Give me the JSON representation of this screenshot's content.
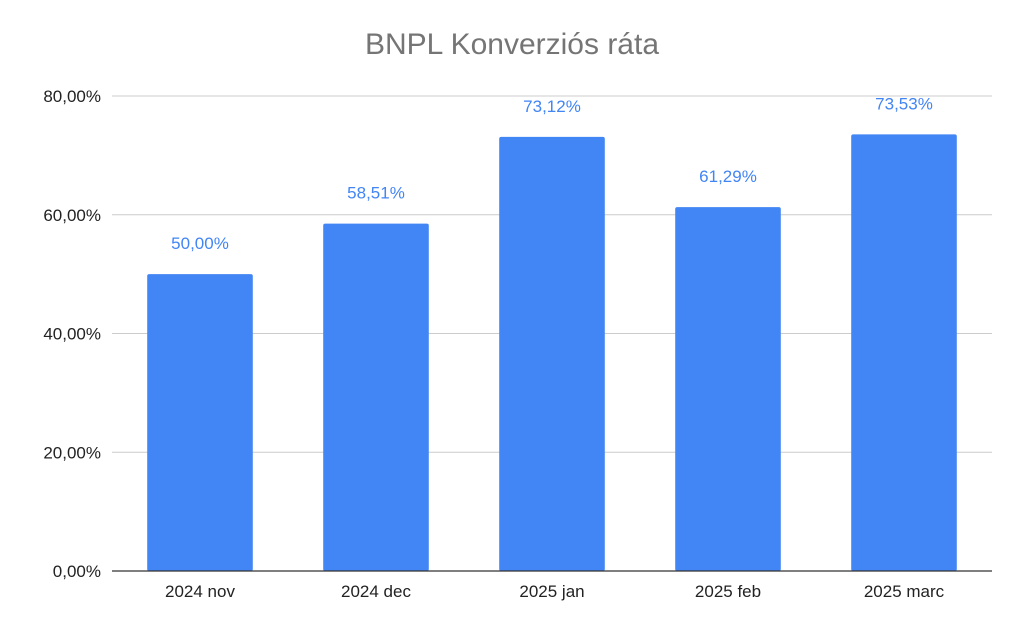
{
  "chart_data": {
    "type": "bar",
    "title": "BNPL Konverziós ráta",
    "categories": [
      "2024 nov",
      "2024 dec",
      "2025 jan",
      "2025 feb",
      "2025 marc"
    ],
    "series": [
      {
        "values": [
          50.0,
          58.51,
          73.12,
          61.29,
          73.53
        ],
        "data_labels": [
          "50,00%",
          "58,51%",
          "73,12%",
          "61,29%",
          "73,53%"
        ]
      }
    ],
    "ylim": [
      0,
      80
    ],
    "yticks": [
      0,
      20,
      40,
      60,
      80
    ],
    "ytick_labels": [
      "0,00%",
      "20,00%",
      "40,00%",
      "60,00%",
      "80,00%"
    ],
    "xlabel": "",
    "ylabel": "",
    "grid": true,
    "legend": "none",
    "colors": {
      "bar": "#4285f4",
      "data_label": "#4285f4",
      "gridline": "#cccccc",
      "axis": "#333333",
      "tick_label": "#222222",
      "title": "#757575"
    }
  }
}
